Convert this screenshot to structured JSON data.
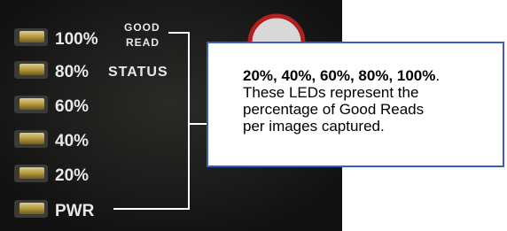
{
  "panel": {
    "leds": [
      "100%",
      "80%",
      "60%",
      "40%",
      "20%",
      "PWR"
    ],
    "status_label": {
      "line1": "GOOD",
      "line2": "READ",
      "line3": "STATUS"
    }
  },
  "callout": {
    "heading": "20%, 40%, 60%, 80%, 100%",
    "heading_end": ".",
    "body_lines": [
      "These LEDs represent the",
      "percentage of Good Reads",
      "per images captured."
    ]
  }
}
